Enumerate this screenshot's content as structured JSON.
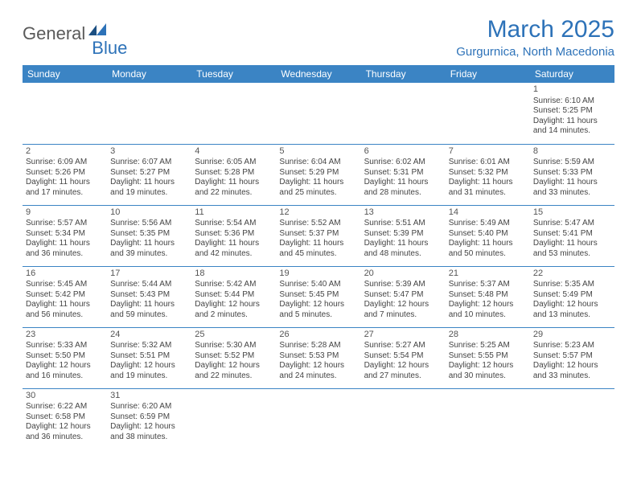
{
  "logo": {
    "text1": "General",
    "text2": "Blue"
  },
  "title": "March 2025",
  "location": "Gurgurnica, North Macedonia",
  "colors": {
    "header_bg": "#3b84c4",
    "accent": "#2d72b8",
    "text": "#444444"
  },
  "days_of_week": [
    "Sunday",
    "Monday",
    "Tuesday",
    "Wednesday",
    "Thursday",
    "Friday",
    "Saturday"
  ],
  "weeks": [
    [
      null,
      null,
      null,
      null,
      null,
      null,
      {
        "n": "1",
        "sr": "Sunrise: 6:10 AM",
        "ss": "Sunset: 5:25 PM",
        "d1": "Daylight: 11 hours",
        "d2": "and 14 minutes."
      }
    ],
    [
      {
        "n": "2",
        "sr": "Sunrise: 6:09 AM",
        "ss": "Sunset: 5:26 PM",
        "d1": "Daylight: 11 hours",
        "d2": "and 17 minutes."
      },
      {
        "n": "3",
        "sr": "Sunrise: 6:07 AM",
        "ss": "Sunset: 5:27 PM",
        "d1": "Daylight: 11 hours",
        "d2": "and 19 minutes."
      },
      {
        "n": "4",
        "sr": "Sunrise: 6:05 AM",
        "ss": "Sunset: 5:28 PM",
        "d1": "Daylight: 11 hours",
        "d2": "and 22 minutes."
      },
      {
        "n": "5",
        "sr": "Sunrise: 6:04 AM",
        "ss": "Sunset: 5:29 PM",
        "d1": "Daylight: 11 hours",
        "d2": "and 25 minutes."
      },
      {
        "n": "6",
        "sr": "Sunrise: 6:02 AM",
        "ss": "Sunset: 5:31 PM",
        "d1": "Daylight: 11 hours",
        "d2": "and 28 minutes."
      },
      {
        "n": "7",
        "sr": "Sunrise: 6:01 AM",
        "ss": "Sunset: 5:32 PM",
        "d1": "Daylight: 11 hours",
        "d2": "and 31 minutes."
      },
      {
        "n": "8",
        "sr": "Sunrise: 5:59 AM",
        "ss": "Sunset: 5:33 PM",
        "d1": "Daylight: 11 hours",
        "d2": "and 33 minutes."
      }
    ],
    [
      {
        "n": "9",
        "sr": "Sunrise: 5:57 AM",
        "ss": "Sunset: 5:34 PM",
        "d1": "Daylight: 11 hours",
        "d2": "and 36 minutes."
      },
      {
        "n": "10",
        "sr": "Sunrise: 5:56 AM",
        "ss": "Sunset: 5:35 PM",
        "d1": "Daylight: 11 hours",
        "d2": "and 39 minutes."
      },
      {
        "n": "11",
        "sr": "Sunrise: 5:54 AM",
        "ss": "Sunset: 5:36 PM",
        "d1": "Daylight: 11 hours",
        "d2": "and 42 minutes."
      },
      {
        "n": "12",
        "sr": "Sunrise: 5:52 AM",
        "ss": "Sunset: 5:37 PM",
        "d1": "Daylight: 11 hours",
        "d2": "and 45 minutes."
      },
      {
        "n": "13",
        "sr": "Sunrise: 5:51 AM",
        "ss": "Sunset: 5:39 PM",
        "d1": "Daylight: 11 hours",
        "d2": "and 48 minutes."
      },
      {
        "n": "14",
        "sr": "Sunrise: 5:49 AM",
        "ss": "Sunset: 5:40 PM",
        "d1": "Daylight: 11 hours",
        "d2": "and 50 minutes."
      },
      {
        "n": "15",
        "sr": "Sunrise: 5:47 AM",
        "ss": "Sunset: 5:41 PM",
        "d1": "Daylight: 11 hours",
        "d2": "and 53 minutes."
      }
    ],
    [
      {
        "n": "16",
        "sr": "Sunrise: 5:45 AM",
        "ss": "Sunset: 5:42 PM",
        "d1": "Daylight: 11 hours",
        "d2": "and 56 minutes."
      },
      {
        "n": "17",
        "sr": "Sunrise: 5:44 AM",
        "ss": "Sunset: 5:43 PM",
        "d1": "Daylight: 11 hours",
        "d2": "and 59 minutes."
      },
      {
        "n": "18",
        "sr": "Sunrise: 5:42 AM",
        "ss": "Sunset: 5:44 PM",
        "d1": "Daylight: 12 hours",
        "d2": "and 2 minutes."
      },
      {
        "n": "19",
        "sr": "Sunrise: 5:40 AM",
        "ss": "Sunset: 5:45 PM",
        "d1": "Daylight: 12 hours",
        "d2": "and 5 minutes."
      },
      {
        "n": "20",
        "sr": "Sunrise: 5:39 AM",
        "ss": "Sunset: 5:47 PM",
        "d1": "Daylight: 12 hours",
        "d2": "and 7 minutes."
      },
      {
        "n": "21",
        "sr": "Sunrise: 5:37 AM",
        "ss": "Sunset: 5:48 PM",
        "d1": "Daylight: 12 hours",
        "d2": "and 10 minutes."
      },
      {
        "n": "22",
        "sr": "Sunrise: 5:35 AM",
        "ss": "Sunset: 5:49 PM",
        "d1": "Daylight: 12 hours",
        "d2": "and 13 minutes."
      }
    ],
    [
      {
        "n": "23",
        "sr": "Sunrise: 5:33 AM",
        "ss": "Sunset: 5:50 PM",
        "d1": "Daylight: 12 hours",
        "d2": "and 16 minutes."
      },
      {
        "n": "24",
        "sr": "Sunrise: 5:32 AM",
        "ss": "Sunset: 5:51 PM",
        "d1": "Daylight: 12 hours",
        "d2": "and 19 minutes."
      },
      {
        "n": "25",
        "sr": "Sunrise: 5:30 AM",
        "ss": "Sunset: 5:52 PM",
        "d1": "Daylight: 12 hours",
        "d2": "and 22 minutes."
      },
      {
        "n": "26",
        "sr": "Sunrise: 5:28 AM",
        "ss": "Sunset: 5:53 PM",
        "d1": "Daylight: 12 hours",
        "d2": "and 24 minutes."
      },
      {
        "n": "27",
        "sr": "Sunrise: 5:27 AM",
        "ss": "Sunset: 5:54 PM",
        "d1": "Daylight: 12 hours",
        "d2": "and 27 minutes."
      },
      {
        "n": "28",
        "sr": "Sunrise: 5:25 AM",
        "ss": "Sunset: 5:55 PM",
        "d1": "Daylight: 12 hours",
        "d2": "and 30 minutes."
      },
      {
        "n": "29",
        "sr": "Sunrise: 5:23 AM",
        "ss": "Sunset: 5:57 PM",
        "d1": "Daylight: 12 hours",
        "d2": "and 33 minutes."
      }
    ],
    [
      {
        "n": "30",
        "sr": "Sunrise: 6:22 AM",
        "ss": "Sunset: 6:58 PM",
        "d1": "Daylight: 12 hours",
        "d2": "and 36 minutes."
      },
      {
        "n": "31",
        "sr": "Sunrise: 6:20 AM",
        "ss": "Sunset: 6:59 PM",
        "d1": "Daylight: 12 hours",
        "d2": "and 38 minutes."
      },
      null,
      null,
      null,
      null,
      null
    ]
  ]
}
